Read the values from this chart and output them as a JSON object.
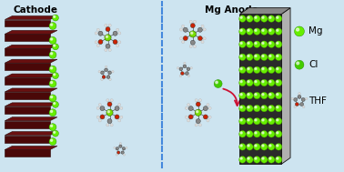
{
  "background_color": "#cde4f0",
  "title_cathode": "Cathode",
  "title_anode": "Mg Anode",
  "legend_mg": "Mg",
  "legend_cl": "Cl",
  "legend_thf": "THF",
  "cathode_color_dark": "#4a0808",
  "cathode_color_top": "#6a1010",
  "mg_color": "#66ee00",
  "cl_color": "#44cc00",
  "anode_face_color": "#2a2a2a",
  "anode_side_color": "#b0b0b0",
  "anode_top_color": "#888888",
  "dashed_line_color": "#4488dd",
  "fig_width": 3.78,
  "fig_height": 1.89,
  "dpi": 100
}
